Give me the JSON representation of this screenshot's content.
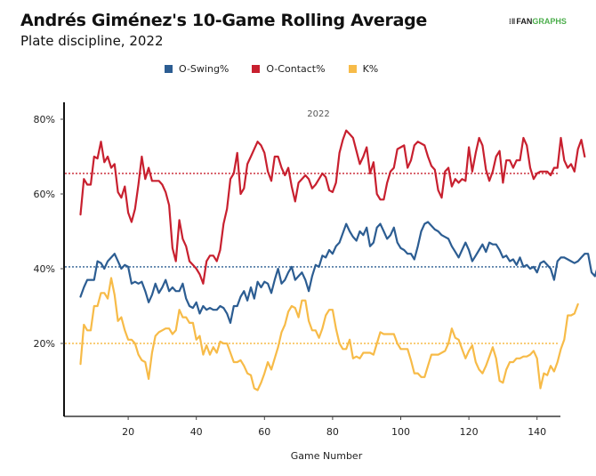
{
  "header": {
    "title": "Andrés Giménez's 10-Game Rolling Average",
    "subtitle": "Plate discipline, 2022",
    "logo_mark": "⁝‖",
    "logo_fan": "FAN",
    "logo_graphs": "GRAPHS"
  },
  "chart_data": {
    "type": "line",
    "title": "Andrés Giménez's 10-Game Rolling Average",
    "subtitle": "Plate discipline, 2022",
    "xlabel": "Game Number",
    "ylabel": "",
    "xlim": [
      1,
      147
    ],
    "ylim": [
      0,
      84
    ],
    "x_ticks": [
      20,
      40,
      60,
      80,
      100,
      120,
      140
    ],
    "x_tick_labels": [
      "20",
      "40",
      "60",
      "80",
      "100",
      "120",
      "140"
    ],
    "y_ticks": [
      20,
      40,
      60,
      80
    ],
    "y_tick_labels": [
      "20%",
      "40%",
      "60%",
      "80%"
    ],
    "grid": false,
    "legend_position": "top-center",
    "annotation": "2022",
    "x_start": 6,
    "series": [
      {
        "name": "O-Swing%",
        "color": "#2c5d92",
        "season_average": 40.5,
        "values": [
          32.5,
          35,
          37,
          37,
          37,
          42,
          41.5,
          40,
          42,
          43,
          44,
          42,
          40,
          41,
          40.5,
          36,
          36.5,
          36,
          36.5,
          34,
          31,
          33,
          36,
          33.5,
          35,
          37,
          34,
          35,
          34,
          34,
          36,
          32,
          30,
          29.5,
          31,
          28,
          30,
          29,
          29.5,
          29,
          29,
          30,
          29.5,
          28,
          25.5,
          30,
          30,
          32.5,
          34,
          31.5,
          35,
          32,
          36.5,
          35,
          36.5,
          36,
          33.5,
          37,
          40,
          36,
          37,
          39,
          40.5,
          37,
          38,
          39,
          37,
          34,
          38,
          41,
          40.5,
          43.5,
          43,
          45,
          44,
          46,
          47,
          49.5,
          52,
          50,
          48.5,
          47.5,
          50,
          49,
          51,
          46,
          47,
          51,
          52,
          50,
          48,
          49,
          51,
          47,
          45.5,
          45,
          44,
          44,
          42.5,
          46,
          50,
          52,
          52.5,
          51.5,
          50.5,
          50,
          49,
          48.5,
          48,
          46,
          44.5,
          43,
          45,
          47,
          45,
          42,
          43.5,
          45,
          46.5,
          44.5,
          47,
          46.5,
          46.5,
          45,
          43,
          43.5,
          42,
          42.5,
          41,
          43,
          40.5,
          41,
          40,
          40.5,
          39,
          41.5,
          42,
          41,
          40,
          37,
          42,
          43,
          43,
          42.5,
          42,
          41.5,
          42,
          43,
          44,
          44,
          39,
          38,
          41
        ]
      },
      {
        "name": "O-Contact%",
        "color": "#c8202f",
        "season_average": 65.5,
        "values": [
          54.5,
          64,
          62.5,
          62.5,
          70,
          69.5,
          74,
          68.5,
          70,
          67,
          68,
          60.5,
          59,
          62,
          55,
          52.5,
          56,
          62.5,
          70,
          64,
          67,
          63.5,
          63.5,
          63.5,
          62.5,
          60.5,
          57,
          45.5,
          42,
          53,
          48,
          46,
          42,
          41,
          40,
          38.5,
          36,
          42,
          43.5,
          43.5,
          42,
          45,
          52,
          56,
          64,
          65.5,
          71,
          60,
          61.5,
          68,
          70,
          72,
          74,
          73,
          71,
          66,
          63.5,
          70,
          70,
          67,
          65,
          67,
          62,
          58,
          63,
          64,
          65,
          64,
          61.5,
          62.5,
          64,
          65.5,
          64.5,
          61,
          60.5,
          63,
          71,
          74.5,
          77,
          76,
          75,
          71.5,
          68,
          70,
          72.5,
          65.5,
          68.5,
          60,
          58.5,
          58.5,
          63,
          66,
          67,
          72,
          72.5,
          73,
          67,
          69,
          73,
          74,
          73.5,
          73,
          70,
          67.5,
          66.5,
          61,
          59,
          66,
          67,
          62,
          64,
          63,
          64,
          63.5,
          72.5,
          66,
          71,
          75,
          73,
          66.5,
          63.5,
          66,
          70,
          71.5,
          63,
          69,
          69,
          67,
          69,
          69,
          75,
          73,
          67,
          64,
          65.5,
          66,
          66,
          66,
          65,
          67,
          67,
          75,
          69,
          67,
          68,
          66,
          72,
          74.5,
          70
        ]
      },
      {
        "name": "K%",
        "color": "#f7bb48",
        "season_average": 20,
        "values": [
          14.5,
          25,
          23.5,
          23.5,
          30,
          30,
          33.5,
          33.5,
          32,
          37.5,
          33,
          26,
          27,
          23.5,
          21,
          21,
          20,
          17,
          15.5,
          15,
          10.5,
          17.5,
          22,
          23,
          23.5,
          24,
          24,
          22.5,
          23.5,
          29,
          27,
          27,
          25.5,
          25.5,
          21,
          22,
          17,
          19.5,
          17,
          19,
          17.5,
          20.5,
          20,
          20,
          17.5,
          15,
          15,
          15.5,
          14,
          12,
          11.5,
          8,
          7.5,
          9.5,
          12,
          15,
          13,
          16,
          19,
          23,
          25,
          28.5,
          30,
          29.5,
          27,
          31.5,
          31.5,
          26,
          23.5,
          23.5,
          21.5,
          24,
          27.5,
          29,
          29,
          24,
          20,
          18.5,
          18.5,
          21,
          16,
          16.5,
          16,
          17.5,
          17.5,
          17.5,
          17,
          20,
          23,
          22.5,
          22.5,
          22.5,
          22.5,
          20,
          18.5,
          18.5,
          18.5,
          15.5,
          12,
          12,
          11,
          11,
          14,
          17,
          17,
          17,
          17.5,
          18,
          20,
          24,
          21.5,
          21,
          18.5,
          16,
          18,
          19.5,
          15,
          13,
          12,
          14,
          16.5,
          19,
          16,
          10,
          9.5,
          13,
          15,
          15,
          16,
          16,
          16.5,
          16.5,
          17,
          18,
          16,
          8,
          12,
          11.5,
          14,
          12.5,
          15,
          18.5,
          21,
          27.5,
          27.5,
          28,
          30.5
        ]
      }
    ]
  },
  "legend": {
    "items": [
      {
        "label": "O-Swing%",
        "color": "#2c5d92"
      },
      {
        "label": "O-Contact%",
        "color": "#c8202f"
      },
      {
        "label": "K%",
        "color": "#f7bb48"
      }
    ]
  }
}
